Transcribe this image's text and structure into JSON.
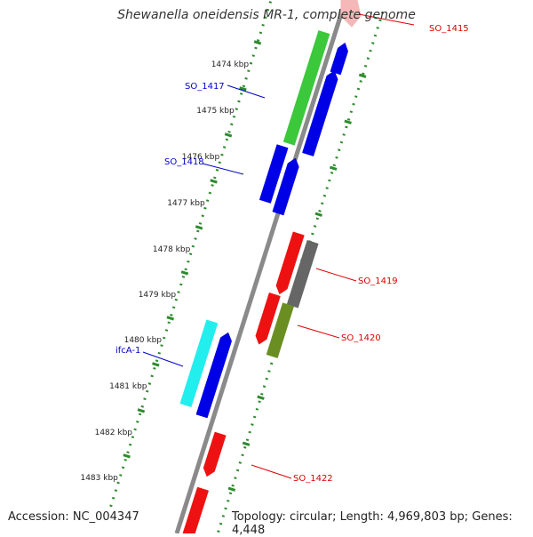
{
  "map": {
    "title": "Shewanella oneidensis MR-1, complete genome",
    "accession_text": "Accession: NC_004347",
    "summary_text": "Topology: circular; Length: 4,969,803 bp; Genes: 4,448"
  },
  "scale_labels": [
    "1474 kbp",
    "1475 kbp",
    "1476 kbp",
    "1477 kbp",
    "1478 kbp",
    "1479 kbp",
    "1480 kbp",
    "1481 kbp",
    "1482 kbp",
    "1483 kbp"
  ],
  "gene_labels": [
    "SO_1415",
    "SO_1417",
    "SO_1418",
    "SO_1419",
    "SO_1420",
    "ifcA-1",
    "SO_1422"
  ],
  "colors": {
    "backbone": "#8a8a8a",
    "ticks": "#2e8b2e",
    "forward_gene": "#0000e6",
    "reverse_gene": "#ee1111",
    "rna_gene": "#3bc83b",
    "cyan_gene": "#22eeee",
    "grey_gene": "#666666",
    "olive_gene": "#6b8e23",
    "label_blue": "#0000cc",
    "label_red": "#dd0000"
  }
}
